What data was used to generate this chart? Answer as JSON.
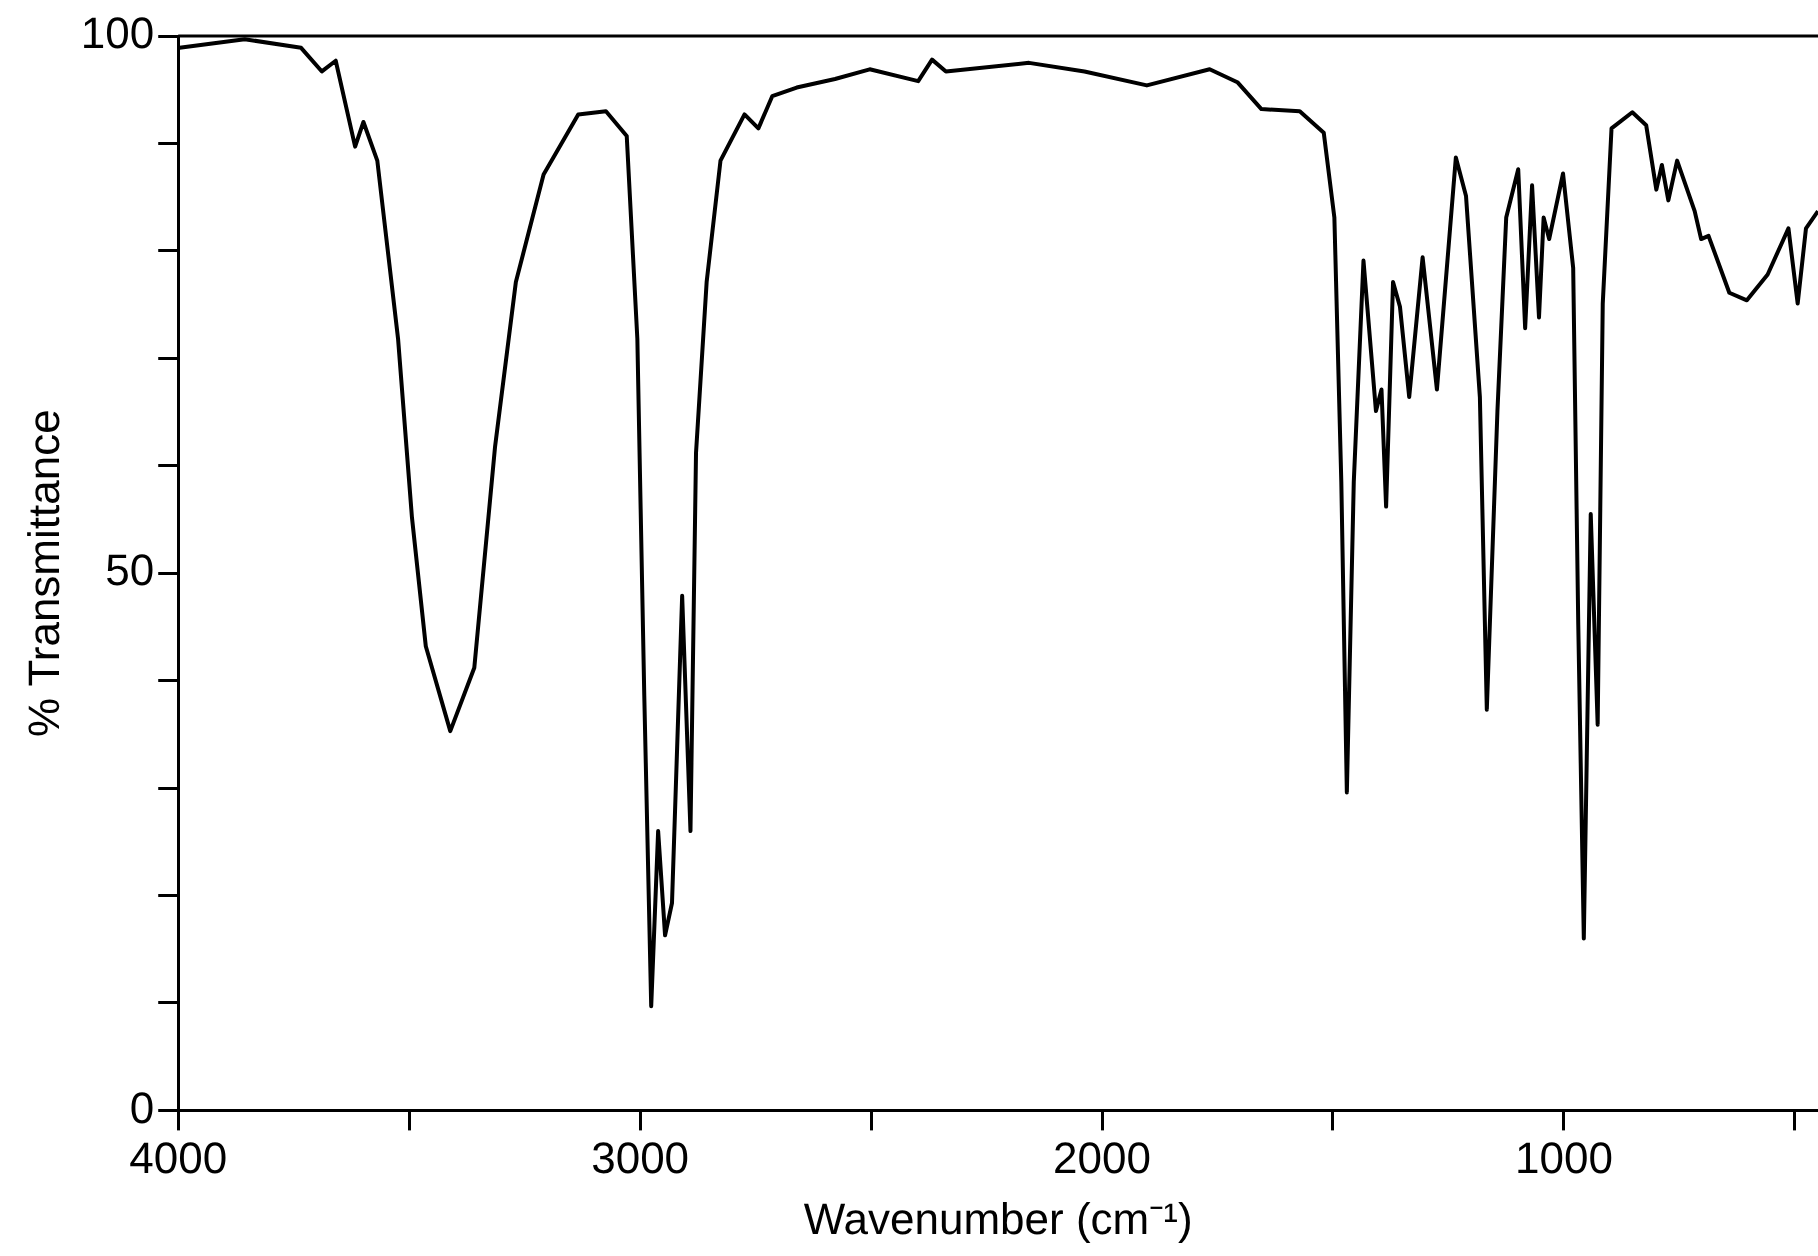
{
  "chart_data": {
    "type": "line",
    "xlabel": "Wavenumber (cm⁻¹)",
    "ylabel": "% Transmittance",
    "xlim": [
      4000,
      450
    ],
    "ylim": [
      0,
      100
    ],
    "xticks": [
      4000,
      {
        "value": 3500,
        "label": null
      },
      3000,
      {
        "value": 2500,
        "label": null
      },
      2000,
      {
        "value": 1500,
        "label": null
      },
      1000,
      {
        "value": 500,
        "label": null
      }
    ],
    "yticks": [
      0,
      {
        "value": 10,
        "label": null
      },
      {
        "value": 20,
        "label": null
      },
      {
        "value": 30,
        "label": null
      },
      {
        "value": 40,
        "label": null
      },
      50,
      {
        "value": 60,
        "label": null
      },
      {
        "value": 70,
        "label": null
      },
      {
        "value": 80,
        "label": null
      },
      {
        "value": 90,
        "label": null
      },
      100
    ],
    "x": [
      3997,
      3856,
      3734,
      3689,
      3659,
      3617,
      3599,
      3569,
      3524,
      3494,
      3464,
      3411,
      3359,
      3314,
      3269,
      3209,
      3134,
      3074,
      3029,
      3006,
      2991,
      2976,
      2961,
      2946,
      2931,
      2909,
      2891,
      2879,
      2856,
      2826,
      2774,
      2744,
      2714,
      2661,
      2578,
      2503,
      2398,
      2368,
      2338,
      2158,
      2038,
      1903,
      1767,
      1707,
      1655,
      1572,
      1520,
      1497,
      1482,
      1470,
      1455,
      1434,
      1407,
      1395,
      1385,
      1370,
      1355,
      1335,
      1306,
      1275,
      1234,
      1212,
      1182,
      1167,
      1144,
      1125,
      1099,
      1084,
      1069,
      1054,
      1044,
      1032,
      1002,
      980,
      969,
      957,
      942,
      927,
      916,
      897,
      852,
      822,
      800,
      788,
      774,
      755,
      717,
      703,
      687,
      642,
      604,
      559,
      514,
      494,
      476,
      450
    ],
    "series": [
      {
        "color": "#000000",
        "values": [
          98.9,
          99.7,
          98.9,
          96.7,
          97.7,
          89.7,
          92.0,
          88.4,
          71.8,
          55.2,
          43.2,
          35.3,
          41.2,
          61.8,
          77.1,
          87.1,
          92.7,
          93.0,
          90.7,
          71.8,
          38.6,
          9.7,
          26.0,
          16.3,
          19.3,
          47.9,
          26.0,
          61.2,
          77.1,
          88.4,
          92.7,
          91.4,
          94.4,
          95.2,
          96.0,
          96.9,
          95.8,
          97.8,
          96.7,
          97.5,
          96.7,
          95.4,
          96.9,
          95.7,
          93.2,
          93.0,
          91.0,
          83.1,
          58.5,
          29.6,
          58.5,
          79.1,
          65.1,
          67.1,
          56.2,
          77.1,
          74.8,
          66.4,
          79.4,
          67.1,
          88.7,
          85.1,
          66.4,
          37.3,
          65.1,
          83.1,
          87.6,
          72.8,
          86.1,
          73.8,
          83.1,
          81.1,
          87.2,
          78.4,
          45.2,
          16.0,
          55.5,
          35.9,
          75.1,
          91.4,
          92.9,
          91.7,
          85.7,
          88.0,
          84.7,
          88.4,
          83.7,
          81.1,
          81.4,
          76.1,
          75.4,
          77.8,
          82.1,
          75.1,
          82.1,
          83.7
        ]
      }
    ]
  }
}
